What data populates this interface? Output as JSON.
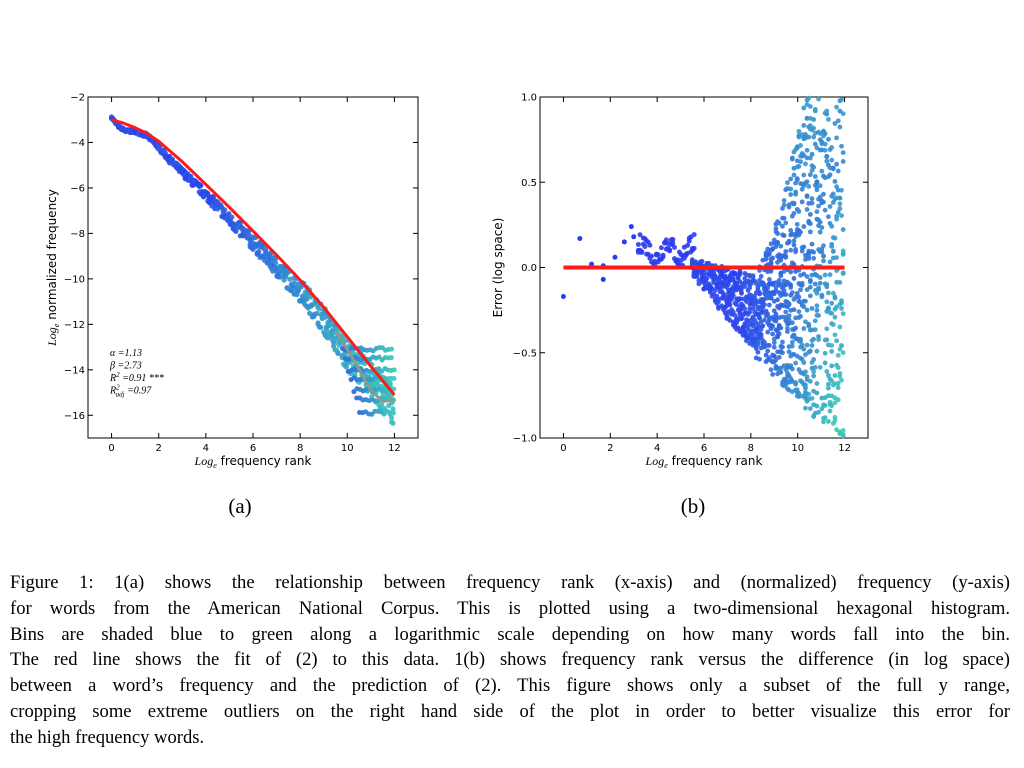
{
  "panels": {
    "a": {
      "label": "(a)"
    },
    "b": {
      "label": "(b)"
    }
  },
  "caption": {
    "lines": [
      "Figure 1: 1(a) shows the relationship between frequency rank (x-axis) and (normalized) frequency (y-axis)",
      "for words from the American National Corpus. This is plotted using a two-dimensional hexagonal histogram.",
      "Bins are shaded blue to green along a logarithmic scale depending on how many words fall into the bin.",
      "The red line shows the fit of (2) to this data. 1(b) shows frequency rank versus the difference (in log space)",
      "between a word’s frequency and the prediction of (2). This figure shows only a subset of the full y range,",
      "cropping some extreme outliers on the right hand side of the plot in order to better visualize this error for",
      "the high frequency words."
    ]
  },
  "colors": {
    "low_density": "#2b3cf0",
    "high_density": "#3ee0b0",
    "fit_line": "#ff1a1a",
    "smooth_line": "#8a9a90"
  },
  "chart_data": [
    {
      "id": "a",
      "type": "scatter",
      "style": "hexbin",
      "title": "",
      "xlabel": "Log_e frequency rank",
      "ylabel": "Log_e normalized frequency",
      "xlim": [
        -1,
        13
      ],
      "ylim": [
        -17,
        -2
      ],
      "xticks": [
        0,
        2,
        4,
        6,
        8,
        10,
        12
      ],
      "yticks": [
        -16,
        -14,
        -12,
        -10,
        -8,
        -6,
        -4,
        -2
      ],
      "grid": false,
      "annotations": [
        "α =1.13",
        "β =2.73",
        "R² =0.91 ***",
        "R²adj =0.97"
      ],
      "series": [
        {
          "role": "data",
          "x": [
            0,
            0.3,
            0.6,
            1,
            1.5,
            2,
            2.5,
            3,
            3.5,
            4,
            4.5,
            5,
            5.5,
            6,
            6.5,
            7,
            7.5,
            8,
            8.5,
            9,
            9.5,
            10,
            10.5,
            11,
            11.5,
            12
          ],
          "y": [
            -2.9,
            -3.3,
            -3.5,
            -3.5,
            -3.7,
            -4.2,
            -4.8,
            -5.3,
            -5.8,
            -6.3,
            -6.8,
            -7.4,
            -7.9,
            -8.4,
            -8.9,
            -9.5,
            -10.0,
            -10.5,
            -11.1,
            -11.8,
            -12.6,
            -13.3,
            -13.9,
            -14.5,
            -15.0,
            -15.6
          ]
        },
        {
          "role": "fit",
          "x": [
            0,
            0.5,
            1,
            1.5,
            2,
            3,
            4,
            5,
            6,
            7,
            8,
            9,
            10,
            11,
            12
          ],
          "y": [
            -3.0,
            -3.15,
            -3.35,
            -3.6,
            -3.95,
            -4.85,
            -5.85,
            -6.85,
            -7.9,
            -8.95,
            -10.05,
            -11.25,
            -12.55,
            -13.85,
            -15.1
          ]
        },
        {
          "role": "smooth",
          "x": [
            9.5,
            10,
            10.5,
            11,
            11.5,
            12
          ],
          "y": [
            -12.3,
            -13.1,
            -14.0,
            -14.9,
            -15.4,
            -15.3
          ]
        }
      ]
    },
    {
      "id": "b",
      "type": "scatter",
      "style": "hexbin",
      "title": "",
      "xlabel": "Log_e frequency rank",
      "ylabel": "Error (log space)",
      "xlim": [
        -1,
        13
      ],
      "ylim": [
        -1.0,
        1.0
      ],
      "xticks": [
        0,
        2,
        4,
        6,
        8,
        10,
        12
      ],
      "yticks": [
        -1.0,
        -0.5,
        0.0,
        0.5,
        1.0
      ],
      "grid": false,
      "series": [
        {
          "role": "data",
          "x": [
            0,
            0.7,
            1.5,
            2,
            2.5,
            3,
            3.5,
            4,
            4.5,
            5,
            5.5,
            6,
            6.5,
            7,
            7.5,
            8,
            8.5,
            9,
            9.5,
            10,
            10.5,
            11,
            11.5,
            12
          ],
          "y": [
            -0.17,
            0.17,
            0.02,
            0.0,
            0.05,
            0.22,
            0.1,
            0.1,
            0.1,
            0.15,
            0.1,
            -0.05,
            -0.1,
            -0.15,
            -0.2,
            -0.25,
            -0.3,
            -0.2,
            0.1,
            0.5,
            0.6,
            0.3,
            0.1,
            0.2
          ]
        },
        {
          "role": "fit",
          "x": [
            0,
            12
          ],
          "y": [
            0,
            0
          ]
        }
      ]
    }
  ]
}
